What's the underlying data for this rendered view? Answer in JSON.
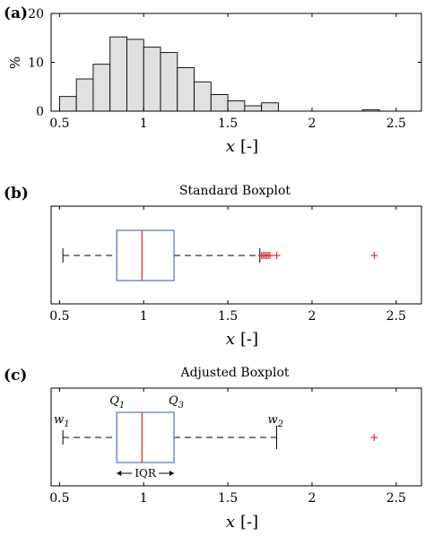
{
  "chart_data": [
    {
      "panel": "(a)",
      "type": "bar",
      "title": "",
      "xlabel": "x",
      "xunit": "[-]",
      "ylabel": "%",
      "xlim": [
        0.45,
        2.65
      ],
      "ylim": [
        0,
        20
      ],
      "xticks": [
        "0.5",
        "1",
        "1.5",
        "2",
        "2.5"
      ],
      "yticks": [
        "0",
        "10",
        "20"
      ],
      "bin_width": 0.1,
      "bin_centers": [
        0.55,
        0.65,
        0.75,
        0.85,
        0.95,
        1.05,
        1.15,
        1.25,
        1.35,
        1.45,
        1.55,
        1.65,
        1.75,
        2.35
      ],
      "values": [
        3,
        6.6,
        9.6,
        15.2,
        14.7,
        13.1,
        12,
        8.9,
        6,
        3.4,
        2.1,
        1.1,
        1.7,
        0.3
      ],
      "bar_color": "#e0e0e0"
    },
    {
      "panel": "(b)",
      "type": "boxplot",
      "title": "Standard Boxplot",
      "xlabel": "x",
      "xunit": "[-]",
      "xlim": [
        0.45,
        2.65
      ],
      "xticks": [
        "0.5",
        "1",
        "1.5",
        "2",
        "2.5"
      ],
      "whisker_low": 0.52,
      "q1": 0.84,
      "median": 0.99,
      "q3": 1.18,
      "whisker_high": 1.69,
      "outliers": [
        1.7,
        1.71,
        1.72,
        1.73,
        1.74,
        1.75,
        1.79,
        2.37
      ],
      "box_color": "#5070c0",
      "median_color": "#e03030",
      "outlier_color": "#e03030"
    },
    {
      "panel": "(c)",
      "type": "boxplot",
      "title": "Adjusted Boxplot",
      "xlabel": "x",
      "xunit": "[-]",
      "xlim": [
        0.45,
        2.65
      ],
      "xticks": [
        "0.5",
        "1",
        "1.5",
        "2",
        "2.5"
      ],
      "whisker_low": 0.52,
      "q1": 0.84,
      "median": 0.99,
      "q3": 1.18,
      "whisker_high": 1.79,
      "outliers": [
        2.37
      ],
      "annotations": {
        "w1": "w",
        "w1_sub": "1",
        "q1": "Q",
        "q1_sub": "1",
        "q3": "Q",
        "q3_sub": "3",
        "w2": "w",
        "w2_sub": "2",
        "iqr": "IQR"
      },
      "box_color": "#5070c0",
      "median_color": "#e03030",
      "outlier_color": "#e03030"
    }
  ]
}
